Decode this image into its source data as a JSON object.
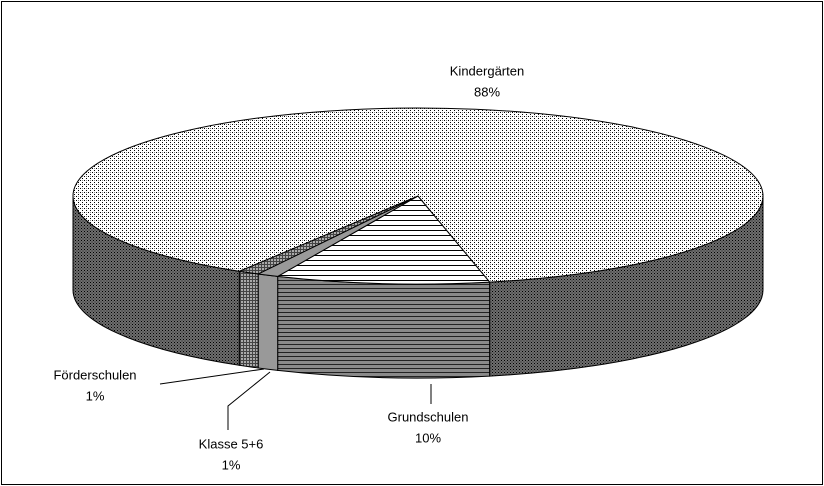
{
  "chart_data": {
    "type": "pie3d",
    "categories": [
      "Grundschulen",
      "Klasse 5+6",
      "Förderschulen",
      "Kindergärten"
    ],
    "values": [
      10,
      1,
      1,
      88
    ],
    "value_labels": [
      "10%",
      "1%",
      "1%",
      "88%"
    ]
  }
}
